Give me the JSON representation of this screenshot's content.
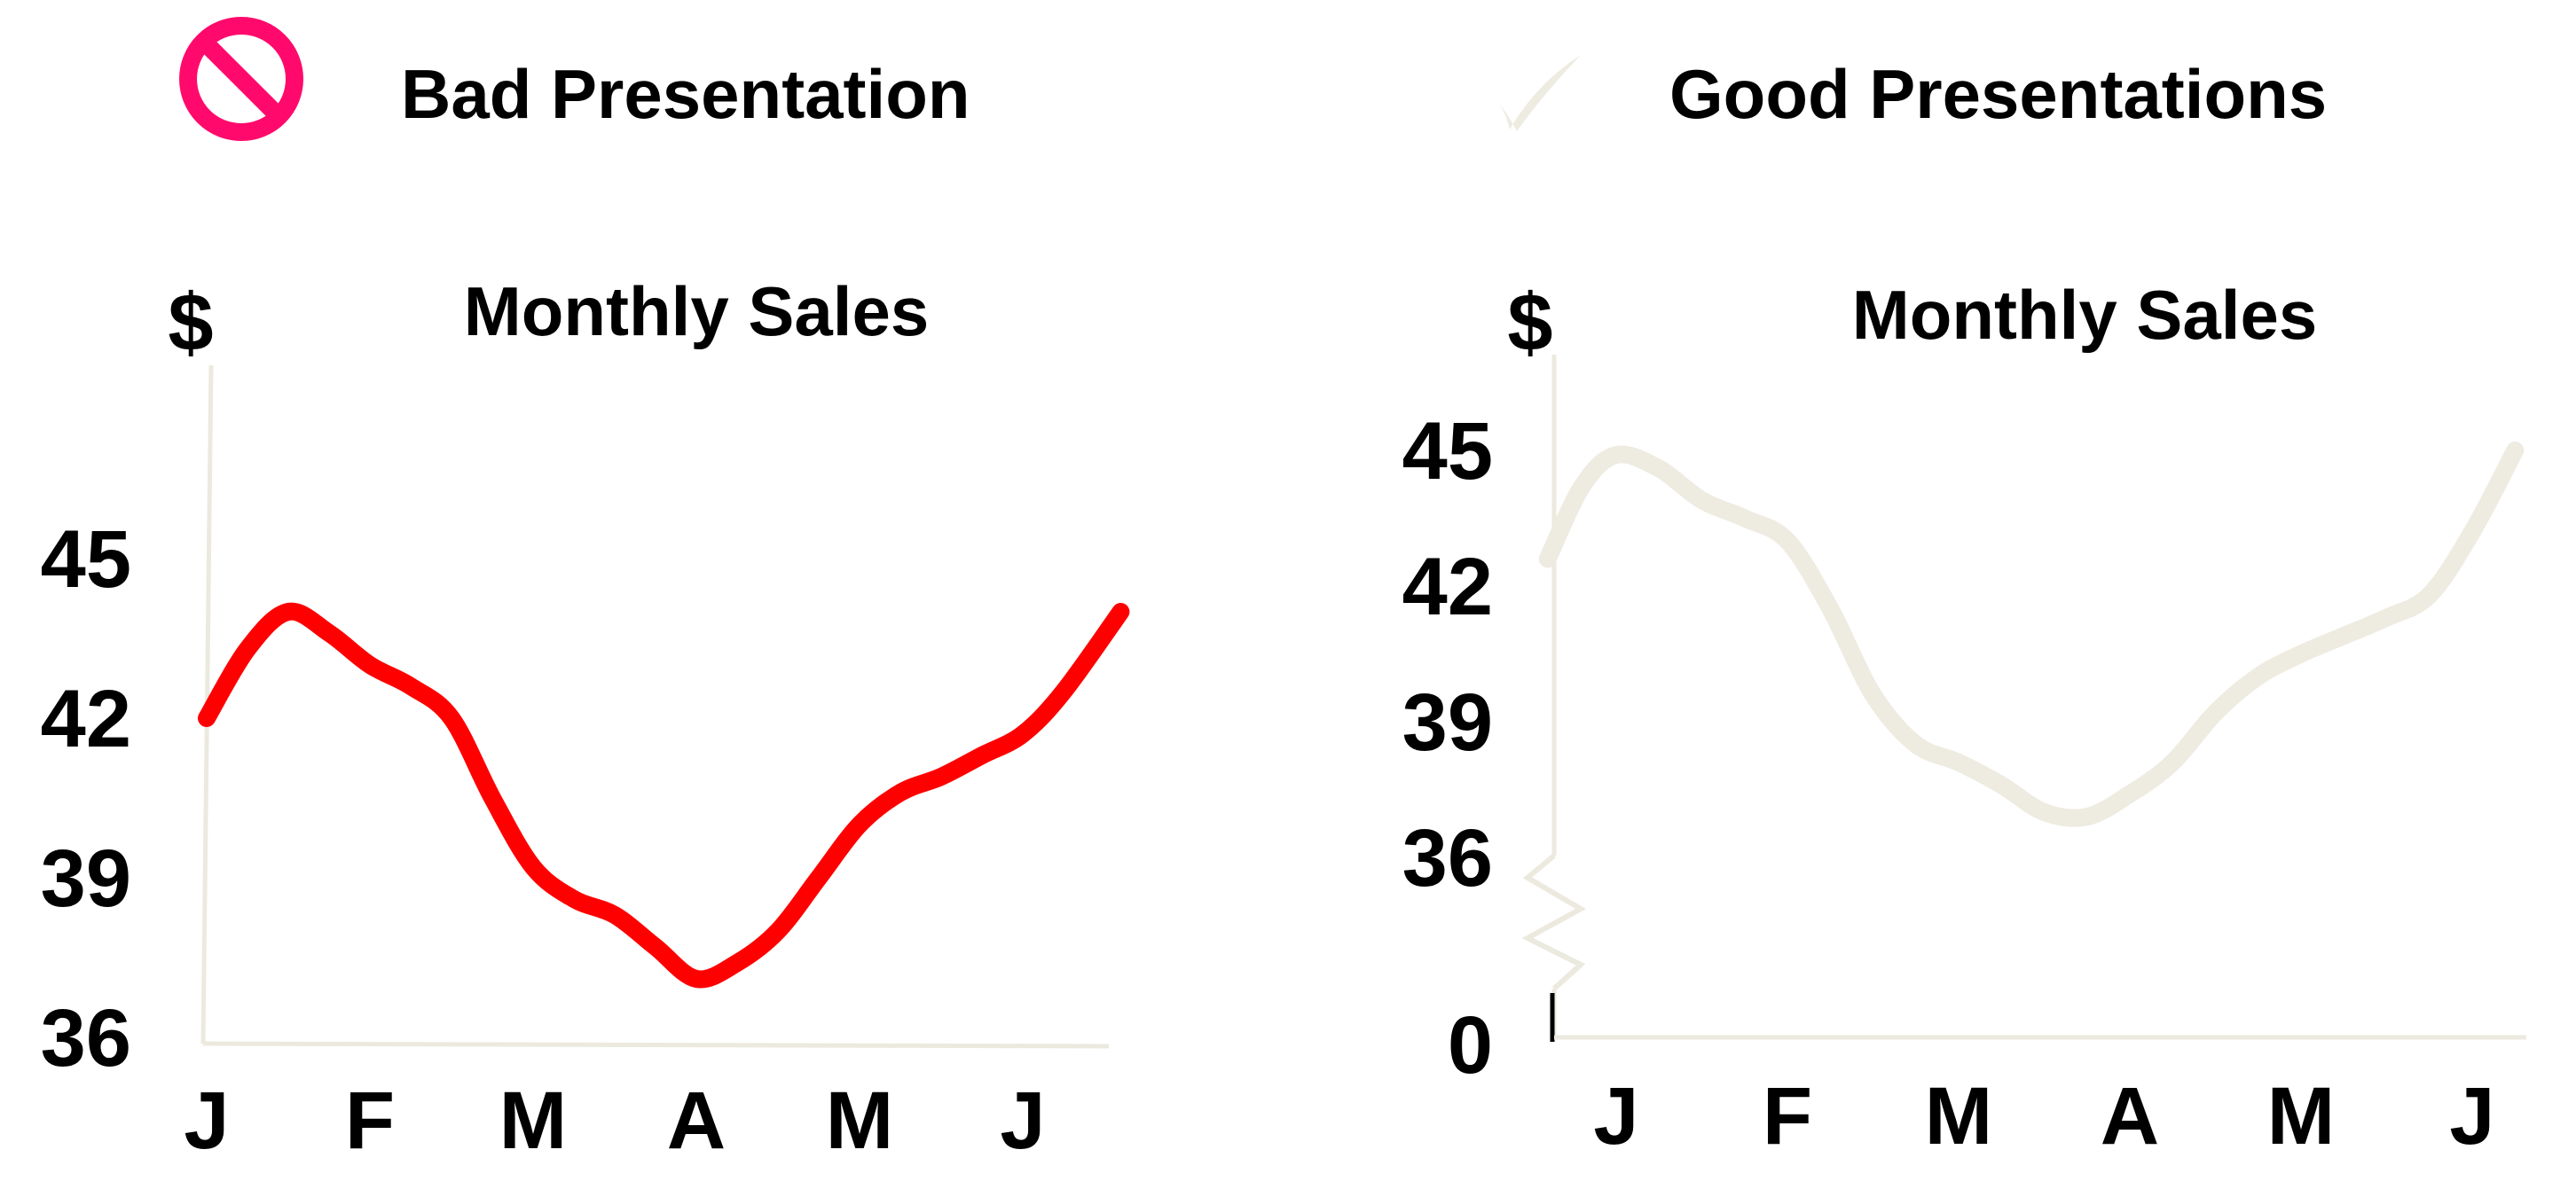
{
  "headings": {
    "bad": "Bad Presentation",
    "good": "Good Presentations"
  },
  "icons": {
    "bad": "no-entry-icon",
    "good": "check-mark-icon"
  },
  "colors": {
    "bad_line": "#ff0000",
    "good_line": "#eeebe1",
    "no_icon": "#ff0a6c",
    "axis": "#ece9df",
    "text": "#000000"
  },
  "chart_data": [
    {
      "type": "line",
      "title": "Monthly Sales",
      "ylabel": "$",
      "categories": [
        "J",
        "F",
        "M",
        "A",
        "M",
        "J"
      ],
      "ylim": [
        36,
        46.5
      ],
      "y_ticks": [
        "36",
        "39",
        "42",
        "45"
      ],
      "series": [
        {
          "x": [
            1.0,
            1.25,
            1.5,
            1.75,
            2.0,
            2.25,
            2.5,
            2.75,
            3.0,
            3.25,
            3.5,
            3.75,
            4.0,
            4.25,
            4.5,
            4.75,
            5.0,
            5.25,
            5.5,
            5.75,
            6.0,
            6.25,
            6.6
          ],
          "values": [
            42.0,
            43.3,
            44.0,
            43.6,
            43.0,
            42.6,
            42.0,
            40.5,
            39.2,
            38.6,
            38.3,
            37.7,
            37.1,
            37.4,
            38.0,
            39.0,
            40.0,
            40.6,
            40.9,
            41.3,
            41.7,
            42.5,
            44.0
          ]
        }
      ]
    },
    {
      "type": "line",
      "title": "Monthly Sales",
      "ylabel": "$",
      "categories": [
        "J",
        "F",
        "M",
        "A",
        "M",
        "J"
      ],
      "ylim": [
        34.0,
        46.3
      ],
      "y_ticks": [
        "0",
        "36",
        "39",
        "42",
        "45"
      ],
      "axis_break": true,
      "series": [
        {
          "x": [
            0.6,
            0.8,
            1.0,
            1.25,
            1.5,
            1.75,
            2.0,
            2.25,
            2.5,
            2.75,
            3.0,
            3.25,
            3.5,
            3.75,
            4.0,
            4.25,
            4.5,
            4.75,
            5.0,
            5.25,
            5.5,
            5.75,
            6.0,
            6.25
          ],
          "values": [
            42.6,
            44.2,
            44.9,
            44.6,
            43.9,
            43.5,
            43.0,
            41.5,
            39.6,
            38.5,
            38.1,
            37.6,
            37.0,
            36.9,
            37.4,
            38.1,
            39.2,
            40.0,
            40.5,
            40.9,
            41.3,
            41.8,
            43.2,
            45.0
          ]
        }
      ]
    }
  ]
}
